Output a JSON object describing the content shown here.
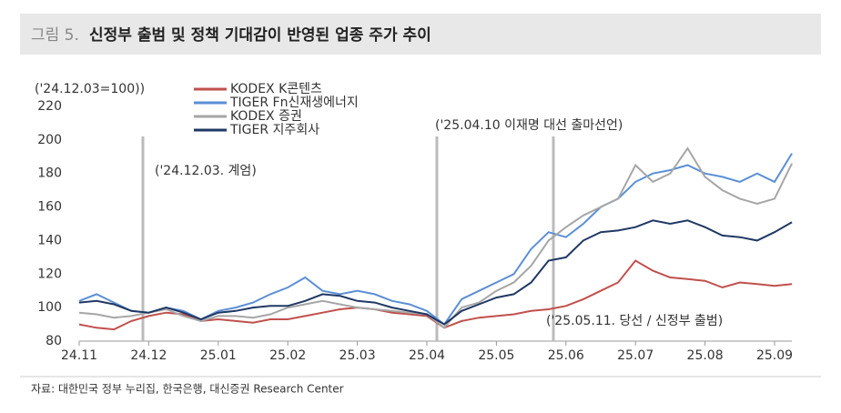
{
  "figure_label": "그림 5.",
  "title": "신정부 출범 및 정책 기대감이 반영된 업종 주가 추이",
  "source": "자료: 대한민국 정부 누리집, 한국은행, 대신증권 Research Center",
  "chart_data": {
    "type": "line",
    "y_label": "('24.12.03=100))",
    "categories": [
      "24.11",
      null,
      null,
      null,
      "24.12",
      null,
      null,
      null,
      "25.01",
      null,
      null,
      null,
      "25.02",
      null,
      null,
      null,
      "25.03",
      null,
      null,
      null,
      "25.04",
      null,
      null,
      null,
      "25.05",
      null,
      null,
      null,
      "25.06",
      null,
      null,
      null,
      "25.07",
      null,
      null,
      null,
      "25.08",
      null,
      null,
      null,
      "25.09",
      null
    ],
    "ylim": [
      80,
      220
    ],
    "yticks": [
      80,
      100,
      120,
      140,
      160,
      180,
      200,
      220
    ],
    "grid": false,
    "series": [
      {
        "name": "KODEX K콘텐츠",
        "color": "#c0504d",
        "values": [
          90,
          88,
          87,
          92,
          95,
          97,
          96,
          92,
          93,
          92,
          91,
          93,
          93,
          95,
          97,
          99,
          100,
          99,
          97,
          96,
          95,
          88,
          92,
          94,
          95,
          96,
          98,
          99,
          101,
          105,
          110,
          115,
          128,
          122,
          118,
          117,
          116,
          112,
          115,
          114,
          113,
          114
        ]
      },
      {
        "name": "TIGER Fn신재생에너지",
        "color": "#5b8fd6",
        "values": [
          104,
          108,
          103,
          98,
          97,
          100,
          98,
          93,
          98,
          100,
          103,
          108,
          112,
          118,
          110,
          108,
          110,
          108,
          104,
          102,
          98,
          90,
          105,
          110,
          115,
          120,
          135,
          145,
          142,
          150,
          160,
          165,
          175,
          180,
          182,
          185,
          180,
          178,
          175,
          180,
          175,
          192
        ]
      },
      {
        "name": "KODEX 증권",
        "color": "#a6a6a6",
        "values": [
          97,
          96,
          94,
          95,
          97,
          99,
          95,
          92,
          95,
          95,
          94,
          96,
          100,
          102,
          104,
          102,
          100,
          99,
          98,
          97,
          96,
          88,
          100,
          103,
          110,
          115,
          125,
          140,
          148,
          155,
          160,
          165,
          185,
          175,
          180,
          195,
          178,
          170,
          165,
          162,
          165,
          186
        ]
      },
      {
        "name": "TIGER 지주회사",
        "color": "#1f3864",
        "values": [
          103,
          104,
          102,
          98,
          97,
          100,
          97,
          93,
          97,
          98,
          100,
          101,
          101,
          104,
          108,
          107,
          104,
          103,
          100,
          98,
          96,
          90,
          98,
          102,
          106,
          108,
          115,
          128,
          130,
          140,
          145,
          146,
          148,
          152,
          150,
          152,
          148,
          143,
          142,
          140,
          145,
          151
        ]
      }
    ],
    "annotations": [
      "('24.12.03. 계엄)",
      "('25.04.10 이재명 대선 출마선언)",
      "('25.05.11. 당선 / 신정부 출범)"
    ]
  }
}
